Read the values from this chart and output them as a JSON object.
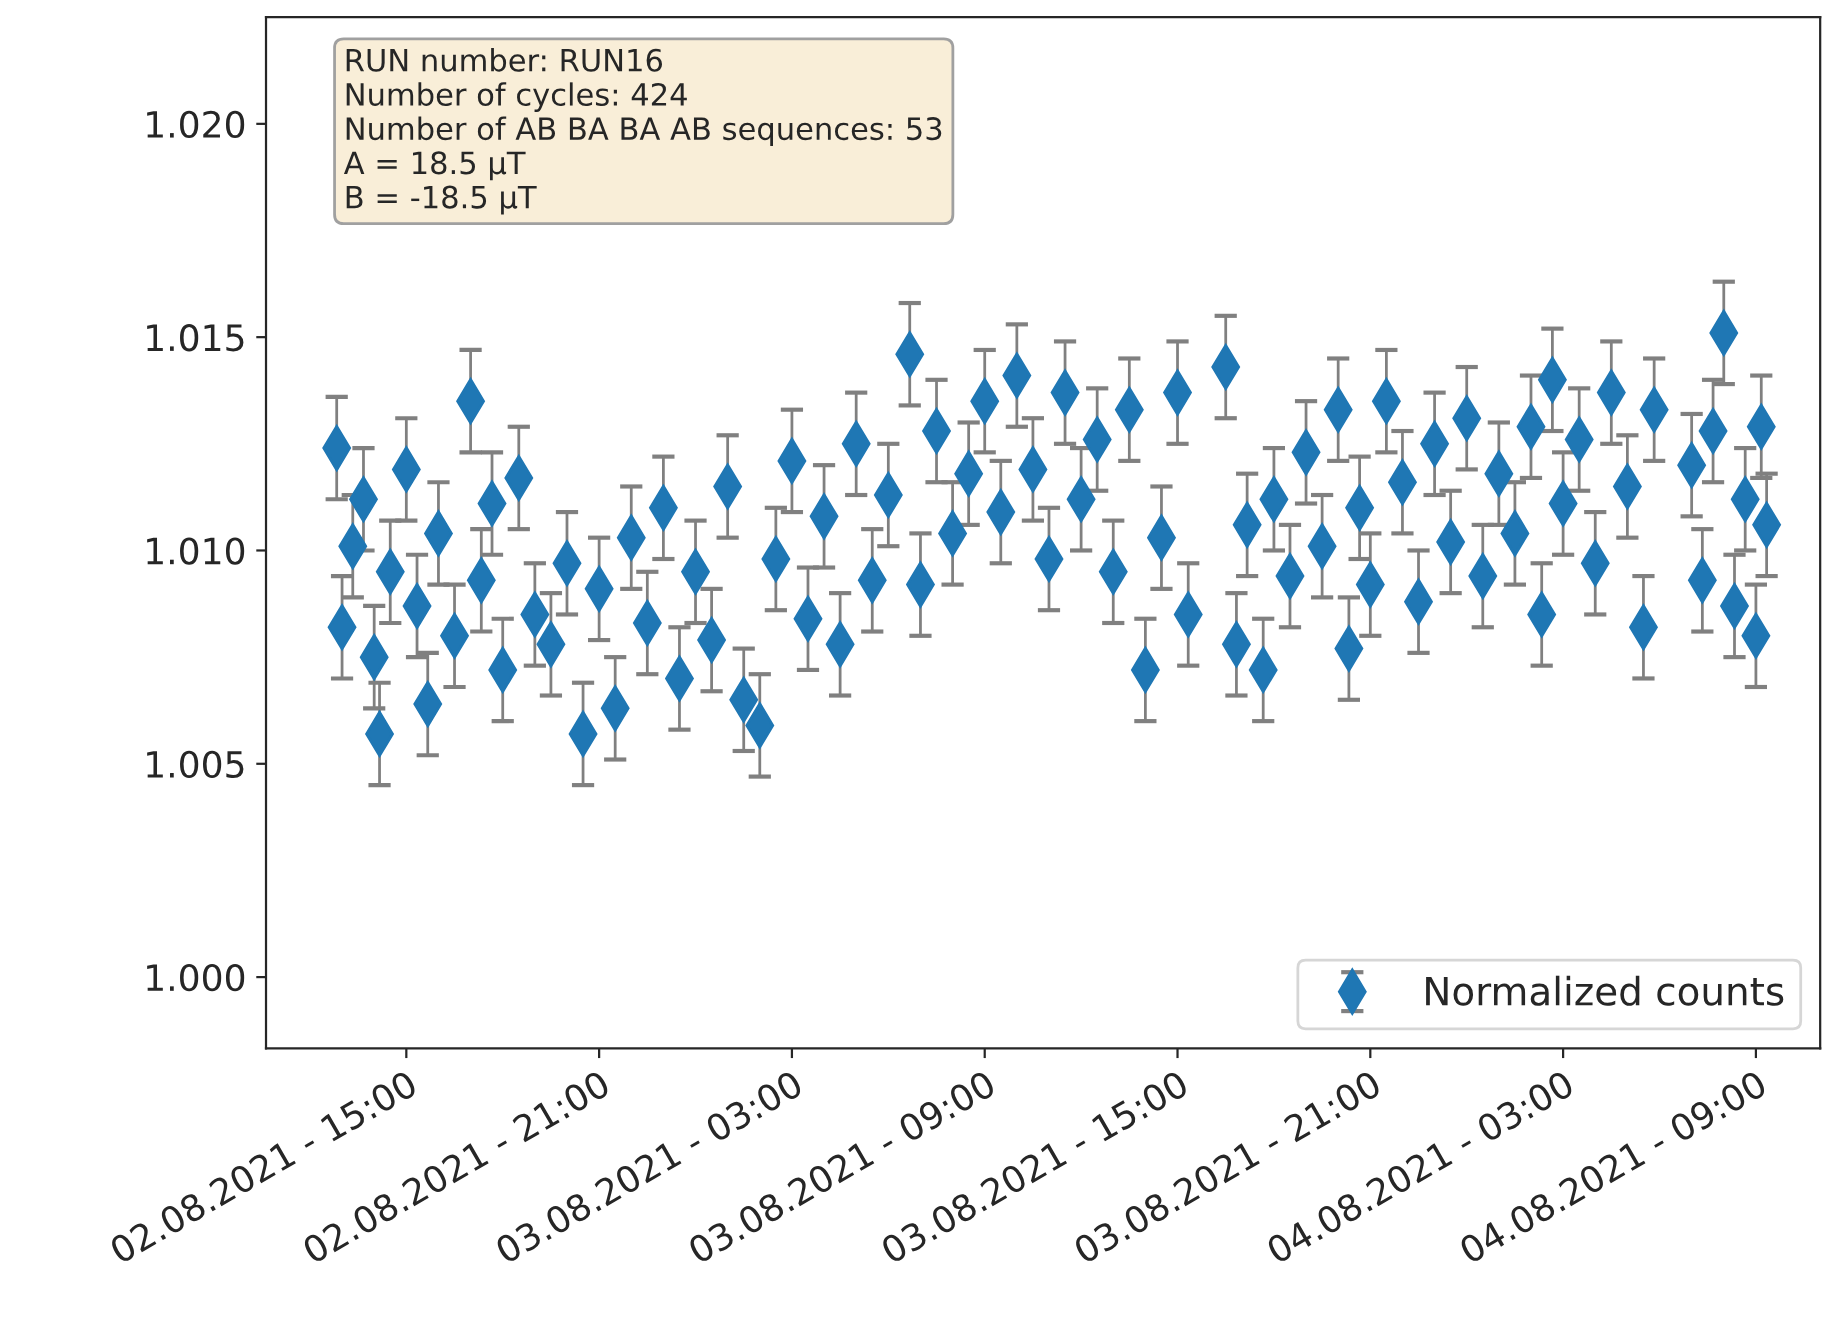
{
  "chart_data": {
    "type": "scatter",
    "annotations": [
      "RUN number: RUN16\nNumber of cycles: 424\nNumber of AB BA BA AB sequences: 53\nA = 18.5 μT\nB = -18.5 μT"
    ],
    "x": [
      "2021-08-02T12:50",
      "2021-08-02T13:00",
      "2021-08-02T13:20",
      "2021-08-02T13:40",
      "2021-08-02T14:00",
      "2021-08-02T14:10",
      "2021-08-02T14:30",
      "2021-08-02T15:00",
      "2021-08-02T15:20",
      "2021-08-02T15:40",
      "2021-08-02T16:00",
      "2021-08-02T16:30",
      "2021-08-02T17:00",
      "2021-08-02T17:20",
      "2021-08-02T17:40",
      "2021-08-02T18:00",
      "2021-08-02T18:30",
      "2021-08-02T19:00",
      "2021-08-02T19:30",
      "2021-08-02T20:00",
      "2021-08-02T20:30",
      "2021-08-02T21:00",
      "2021-08-02T21:30",
      "2021-08-02T22:00",
      "2021-08-02T22:30",
      "2021-08-02T23:00",
      "2021-08-02T23:30",
      "2021-08-03T00:00",
      "2021-08-03T00:30",
      "2021-08-03T01:00",
      "2021-08-03T01:30",
      "2021-08-03T02:00",
      "2021-08-03T02:30",
      "2021-08-03T03:00",
      "2021-08-03T03:30",
      "2021-08-03T04:00",
      "2021-08-03T04:30",
      "2021-08-03T05:00",
      "2021-08-03T05:30",
      "2021-08-03T06:00",
      "2021-08-03T06:40",
      "2021-08-03T07:00",
      "2021-08-03T07:30",
      "2021-08-03T08:00",
      "2021-08-03T08:30",
      "2021-08-03T09:00",
      "2021-08-03T09:30",
      "2021-08-03T10:00",
      "2021-08-03T10:30",
      "2021-08-03T11:00",
      "2021-08-03T11:30",
      "2021-08-03T12:00",
      "2021-08-03T12:30",
      "2021-08-03T13:00",
      "2021-08-03T13:30",
      "2021-08-03T14:00",
      "2021-08-03T14:30",
      "2021-08-03T15:00",
      "2021-08-03T15:20",
      "2021-08-03T16:30",
      "2021-08-03T16:50",
      "2021-08-03T17:10",
      "2021-08-03T17:40",
      "2021-08-03T18:00",
      "2021-08-03T18:30",
      "2021-08-03T19:00",
      "2021-08-03T19:30",
      "2021-08-03T20:00",
      "2021-08-03T20:20",
      "2021-08-03T20:40",
      "2021-08-03T21:00",
      "2021-08-03T21:30",
      "2021-08-03T22:00",
      "2021-08-03T22:30",
      "2021-08-03T23:00",
      "2021-08-03T23:30",
      "2021-08-04T00:00",
      "2021-08-04T00:30",
      "2021-08-04T01:00",
      "2021-08-04T01:30",
      "2021-08-04T02:00",
      "2021-08-04T02:20",
      "2021-08-04T02:40",
      "2021-08-04T03:00",
      "2021-08-04T03:30",
      "2021-08-04T04:00",
      "2021-08-04T04:30",
      "2021-08-04T05:00",
      "2021-08-04T05:30",
      "2021-08-04T05:50",
      "2021-08-04T07:00",
      "2021-08-04T07:20",
      "2021-08-04T07:40",
      "2021-08-04T08:00",
      "2021-08-04T08:20",
      "2021-08-04T08:40",
      "2021-08-04T09:00",
      "2021-08-04T09:10",
      "2021-08-04T09:20"
    ],
    "series": [
      {
        "name": "Normalized counts",
        "color": "#1f77b4",
        "values": [
          1.0124,
          1.0082,
          1.0101,
          1.0112,
          1.0075,
          1.0057,
          1.0095,
          1.0119,
          1.0087,
          1.0064,
          1.0104,
          1.008,
          1.0135,
          1.0093,
          1.0111,
          1.0072,
          1.0117,
          1.0085,
          1.0078,
          1.0097,
          1.0057,
          1.0091,
          1.0063,
          1.0103,
          1.0083,
          1.011,
          1.007,
          1.0095,
          1.0079,
          1.0115,
          1.0065,
          1.0059,
          1.0098,
          1.0121,
          1.0084,
          1.0108,
          1.0078,
          1.0125,
          1.0093,
          1.0113,
          1.0146,
          1.0092,
          1.0128,
          1.0104,
          1.0118,
          1.0135,
          1.0109,
          1.0141,
          1.0119,
          1.0098,
          1.0137,
          1.0112,
          1.0126,
          1.0095,
          1.0133,
          1.0072,
          1.0103,
          1.0137,
          1.0085,
          1.0143,
          1.0078,
          1.0106,
          1.0072,
          1.0112,
          1.0094,
          1.0123,
          1.0101,
          1.0133,
          1.0077,
          1.011,
          1.0092,
          1.0135,
          1.0116,
          1.0088,
          1.0125,
          1.0102,
          1.0131,
          1.0094,
          1.0118,
          1.0104,
          1.0129,
          1.0085,
          1.014,
          1.0111,
          1.0126,
          1.0097,
          1.0137,
          1.0115,
          1.0082,
          1.0133,
          1.012,
          1.0093,
          1.0128,
          1.0151,
          1.0087,
          1.0112,
          1.008,
          1.0129,
          1.0106
        ],
        "errors": [
          0.0012,
          0.0012,
          0.0012,
          0.0012,
          0.0012,
          0.0012,
          0.0012,
          0.0012,
          0.0012,
          0.0012,
          0.0012,
          0.0012,
          0.0012,
          0.0012,
          0.0012,
          0.0012,
          0.0012,
          0.0012,
          0.0012,
          0.0012,
          0.0012,
          0.0012,
          0.0012,
          0.0012,
          0.0012,
          0.0012,
          0.0012,
          0.0012,
          0.0012,
          0.0012,
          0.0012,
          0.0012,
          0.0012,
          0.0012,
          0.0012,
          0.0012,
          0.0012,
          0.0012,
          0.0012,
          0.0012,
          0.0012,
          0.0012,
          0.0012,
          0.0012,
          0.0012,
          0.0012,
          0.0012,
          0.0012,
          0.0012,
          0.0012,
          0.0012,
          0.0012,
          0.0012,
          0.0012,
          0.0012,
          0.0012,
          0.0012,
          0.0012,
          0.0012,
          0.0012,
          0.0012,
          0.0012,
          0.0012,
          0.0012,
          0.0012,
          0.0012,
          0.0012,
          0.0012,
          0.0012,
          0.0012,
          0.0012,
          0.0012,
          0.0012,
          0.0012,
          0.0012,
          0.0012,
          0.0012,
          0.0012,
          0.0012,
          0.0012,
          0.0012,
          0.0012,
          0.0012,
          0.0012,
          0.0012,
          0.0012,
          0.0012,
          0.0012,
          0.0012,
          0.0012,
          0.0012,
          0.0012,
          0.0012,
          0.0012,
          0.0012,
          0.0012,
          0.0012,
          0.0012,
          0.0012
        ]
      }
    ],
    "xlim": [
      "2021-08-02T10:38",
      "2021-08-04T11:00"
    ],
    "xticks": [
      {
        "value": "2021-08-02T15:00",
        "label": "02.08.2021 - 15:00"
      },
      {
        "value": "2021-08-02T21:00",
        "label": "02.08.2021 - 21:00"
      },
      {
        "value": "2021-08-03T03:00",
        "label": "03.08.2021 - 03:00"
      },
      {
        "value": "2021-08-03T09:00",
        "label": "03.08.2021 - 09:00"
      },
      {
        "value": "2021-08-03T15:00",
        "label": "03.08.2021 - 15:00"
      },
      {
        "value": "2021-08-03T21:00",
        "label": "03.08.2021 - 21:00"
      },
      {
        "value": "2021-08-04T03:00",
        "label": "04.08.2021 - 03:00"
      },
      {
        "value": "2021-08-04T09:00",
        "label": "04.08.2021 - 09:00"
      }
    ],
    "ylim": [
      0.99833,
      1.0225
    ],
    "yticks": [
      {
        "value": 1.0,
        "label": "1.000"
      },
      {
        "value": 1.005,
        "label": "1.005"
      },
      {
        "value": 1.01,
        "label": "1.010"
      },
      {
        "value": 1.015,
        "label": "1.015"
      },
      {
        "value": 1.02,
        "label": "1.020"
      }
    ],
    "marker": "diamond",
    "legend": "bottom right",
    "grid": false
  }
}
